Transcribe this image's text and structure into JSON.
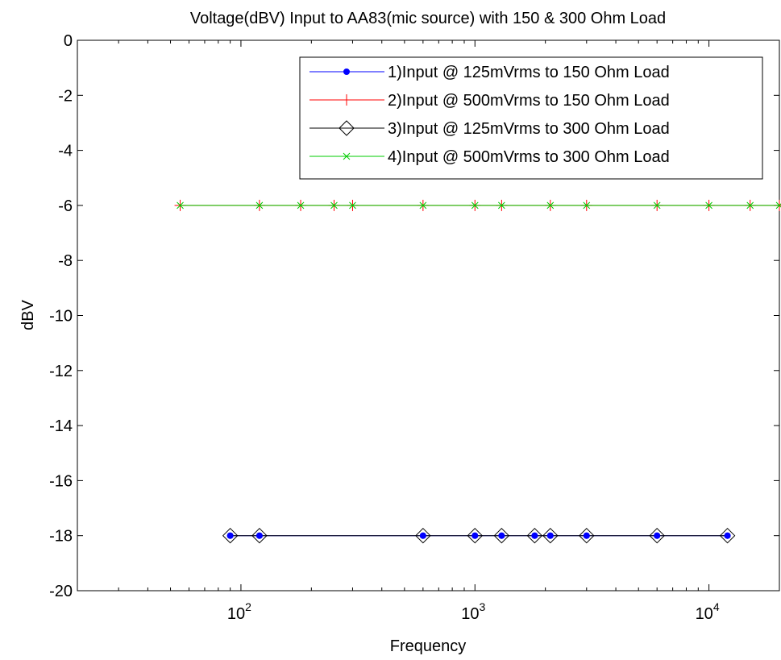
{
  "chart_data": {
    "type": "line",
    "title": "Voltage(dBV) Input to AA83(mic source) with 150 & 300 Ohm Load",
    "xlabel": "Frequency",
    "ylabel": "dBV",
    "xscale": "log",
    "xlim": [
      20,
      20000
    ],
    "ylim": [
      -20,
      0
    ],
    "yticks": [
      "0",
      "-2",
      "-4",
      "-6",
      "-8",
      "-10",
      "-12",
      "-14",
      "-16",
      "-18",
      "-20"
    ],
    "xticks": [
      {
        "base": "10",
        "exp": "2"
      },
      {
        "base": "10",
        "exp": "3"
      },
      {
        "base": "10",
        "exp": "4"
      }
    ],
    "grid": false,
    "legend_position": "top-right",
    "series": [
      {
        "name": "1)Input @ 125mVrms to 150 Ohm Load",
        "color": "#0000ff",
        "marker": "dot",
        "x": [
          90,
          120,
          600,
          1000,
          1300,
          1800,
          2100,
          3000,
          6000,
          12000
        ],
        "y": [
          -18,
          -18,
          -18,
          -18,
          -18,
          -18,
          -18,
          -18,
          -18,
          -18
        ]
      },
      {
        "name": "2)Input @ 500mVrms to 150 Ohm Load",
        "color": "#ff0000",
        "marker": "plus",
        "x": [
          55,
          120,
          180,
          250,
          300,
          600,
          1000,
          1300,
          2100,
          3000,
          6000,
          10000,
          15000,
          20000
        ],
        "y": [
          -6,
          -6,
          -6,
          -6,
          -6,
          -6,
          -6,
          -6,
          -6,
          -6,
          -6,
          -6,
          -6,
          -6
        ]
      },
      {
        "name": "3)Input @ 125mVrms to 300 Ohm Load",
        "color": "#000000",
        "marker": "diamond",
        "x": [
          90,
          120,
          600,
          1000,
          1300,
          1800,
          2100,
          3000,
          6000,
          12000
        ],
        "y": [
          -18,
          -18,
          -18,
          -18,
          -18,
          -18,
          -18,
          -18,
          -18,
          -18
        ]
      },
      {
        "name": "4)Input @ 500mVrms to 300 Ohm Load",
        "color": "#00cc00",
        "marker": "x",
        "x": [
          55,
          120,
          180,
          250,
          300,
          600,
          1000,
          1300,
          2100,
          3000,
          6000,
          10000,
          15000,
          20000
        ],
        "y": [
          -6,
          -6,
          -6,
          -6,
          -6,
          -6,
          -6,
          -6,
          -6,
          -6,
          -6,
          -6,
          -6,
          -6
        ]
      }
    ]
  }
}
